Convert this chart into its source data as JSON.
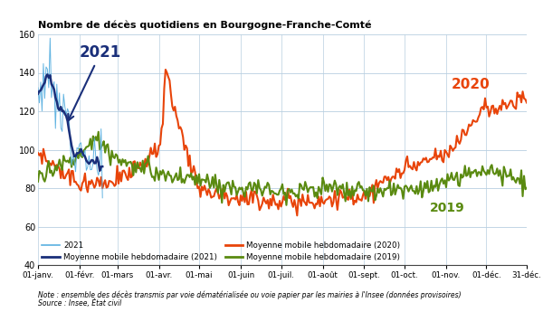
{
  "title": "Nombre de décès quotidiens en Bourgogne-Franche-Comté",
  "ylim": [
    40,
    160
  ],
  "yticks": [
    40,
    60,
    80,
    100,
    120,
    140,
    160
  ],
  "note": "Note : ensemble des décès transmis par voie dématérialisée ou voie papier par les mairies à l'Insee (données provisoires)",
  "source": "Source : Insee, État civil",
  "color_2021_raw": "#5ab0e0",
  "color_2021_ma": "#1a2f7a",
  "color_2020_ma": "#e8440a",
  "color_2019_ma": "#5a8a10",
  "label_2021_raw": "2021",
  "label_2021_ma": "Moyenne mobile hebdomadaire (2021)",
  "label_2020_ma": "Moyenne mobile hebdomadaire (2020)",
  "label_2019_ma": "Moyenne mobile hebdomadaire (2019)",
  "annotation_2021": "2021",
  "annotation_2020": "2020",
  "annotation_2019": "2019",
  "xtick_labels": [
    "01-janv.",
    "01-févr.",
    "01-mars",
    "01-avr.",
    "01-mai",
    "01-juin",
    "01-juil.",
    "01-août",
    "01-sept.",
    "01-oct.",
    "01-nov.",
    "01-déc.",
    "31-déc."
  ]
}
